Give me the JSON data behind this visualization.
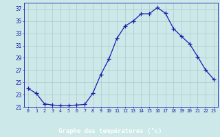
{
  "hours": [
    0,
    1,
    2,
    3,
    4,
    5,
    6,
    7,
    8,
    9,
    10,
    11,
    12,
    13,
    14,
    15,
    16,
    17,
    18,
    19,
    20,
    21,
    22,
    23
  ],
  "temperatures": [
    24.0,
    23.2,
    21.5,
    21.3,
    21.2,
    21.2,
    21.3,
    21.4,
    23.2,
    26.3,
    28.8,
    32.2,
    34.2,
    35.0,
    36.2,
    36.2,
    37.2,
    36.3,
    33.8,
    32.5,
    31.3,
    29.2,
    27.0,
    25.5
  ],
  "line_color": "#1a1aaa",
  "marker": "+",
  "marker_size": 4,
  "bg_color": "#cce8e8",
  "grid_color": "#aacccc",
  "axis_color": "#1a1aaa",
  "xlabel": "Graphe des températures (°c)",
  "ylim": [
    21,
    38
  ],
  "yticks": [
    21,
    23,
    25,
    27,
    29,
    31,
    33,
    35,
    37
  ],
  "xlim": [
    -0.5,
    23.5
  ],
  "xlabel_color": "#1a1aaa",
  "tick_label_color": "#1a1aaa",
  "bottom_bar_color": "#1a1aaa",
  "bottom_bar_height": 0.12
}
